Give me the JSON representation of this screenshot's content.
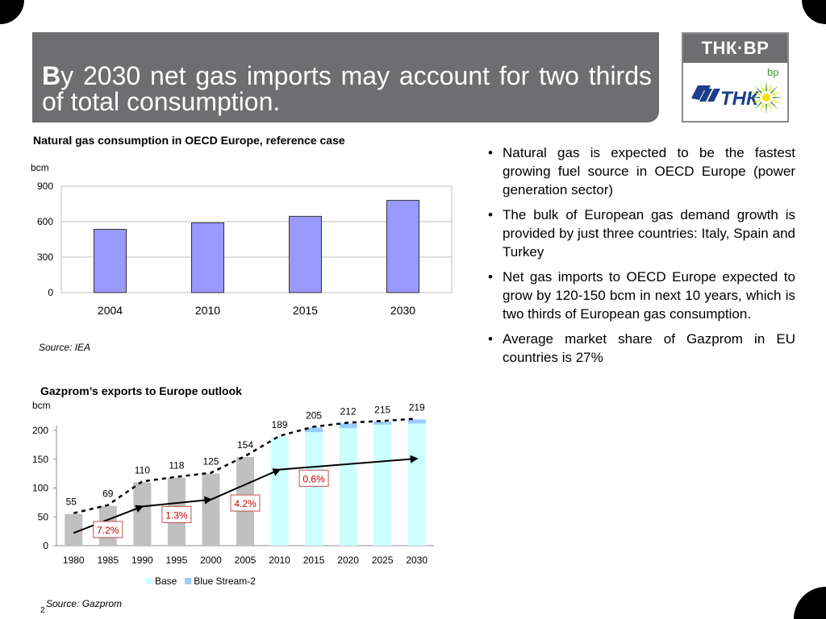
{
  "title": {
    "first_letter": "B",
    "rest": "y 2030 net gas imports may account for two thirds of total consumption."
  },
  "logo": {
    "text": "ТНК·ВР",
    "tnk_mark": "ТНК",
    "bp_mark": "bp",
    "green": "#3b9a2e",
    "yellow": "#f4e200",
    "blue": "#1b3f8b"
  },
  "bullets": [
    "Natural gas is expected to be the fastest growing fuel source in OECD Europe (power generation sector)",
    "The bulk of European gas demand growth is provided by just three countries: Italy, Spain and Turkey",
    "Net gas imports to OECD Europe expected to grow by 120-150 bcm in next 10 years, which is two thirds of European gas consumption.",
    "Average market share of Gazprom in EU countries is 27%"
  ],
  "page_number": "2",
  "chart_data": [
    {
      "type": "bar",
      "title": "Natural gas consumption in OECD Europe, reference case",
      "ylabel": "bcm",
      "categories": [
        "2004",
        "2010",
        "2015",
        "2030"
      ],
      "values": [
        535,
        590,
        645,
        780
      ],
      "ylim": [
        0,
        900
      ],
      "yticks": [
        "0",
        "300",
        "600",
        "900"
      ],
      "grid": true,
      "bar_color": "#9999ff",
      "source": "Source: IEA"
    },
    {
      "type": "bar",
      "title": "Gazprom’s exports to Europe outlook",
      "ylabel": "bcm",
      "categories": [
        "1980",
        "1985",
        "1990",
        "1995",
        "2000",
        "2005",
        "2010",
        "2015",
        "2020",
        "2025",
        "2030"
      ],
      "ylim": [
        0,
        200
      ],
      "yticks": [
        "0",
        "50",
        "100",
        "150",
        "200"
      ],
      "historical_count": 6,
      "historical_color": "#c0c0c0",
      "series": [
        {
          "name": "Base",
          "color": "#ccffff",
          "values": [
            55,
            69,
            110,
            118,
            125,
            154,
            189,
            197,
            204,
            210,
            212
          ]
        },
        {
          "name": "Blue Stream-2",
          "color": "#99ccff",
          "values": [
            0,
            0,
            0,
            0,
            0,
            0,
            0,
            8,
            8,
            5,
            7
          ]
        }
      ],
      "totals": [
        "55",
        "69",
        "110",
        "118",
        "125",
        "154",
        "189",
        "205",
        "212",
        "215",
        "219"
      ],
      "growth_line": [
        {
          "x": "1980",
          "y": 22
        },
        {
          "x": "1990",
          "y": 68
        },
        {
          "x": "2000",
          "y": 80
        },
        {
          "x": "2010",
          "y": 132
        },
        {
          "x": "2030",
          "y": 151
        }
      ],
      "growth_labels": [
        {
          "text": "7.2%",
          "x": "1985",
          "y": 28
        },
        {
          "text": "1.3%",
          "x": "1995",
          "y": 54
        },
        {
          "text": "4.2%",
          "x": "2005",
          "y": 74
        },
        {
          "text": "0.6%",
          "x": "2015",
          "y": 117
        }
      ],
      "legend_position": "bottom",
      "source": "Source: Gazprom"
    }
  ]
}
